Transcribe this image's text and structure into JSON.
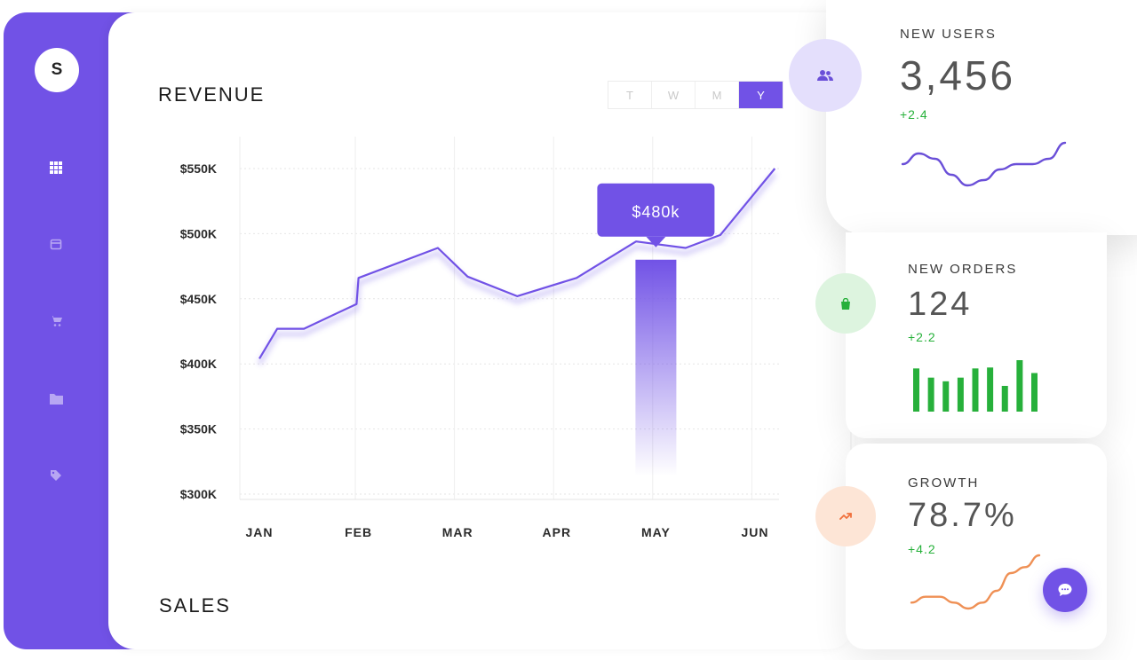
{
  "sidebar": {
    "avatar_initial": "S",
    "items": [
      {
        "icon": "grid-icon"
      },
      {
        "icon": "calendar-icon"
      },
      {
        "icon": "cart-icon"
      },
      {
        "icon": "folder-icon"
      },
      {
        "icon": "tag-icon"
      }
    ]
  },
  "revenue": {
    "title": "REVENUE",
    "ranges": [
      "T",
      "W",
      "M",
      "Y"
    ],
    "active_range": "Y",
    "tooltip": "$480k"
  },
  "sales": {
    "title": "SALES"
  },
  "chart_data": {
    "type": "line",
    "title": "REVENUE",
    "categories": [
      "JAN",
      "FEB",
      "MAR",
      "APR",
      "MAY",
      "JUN"
    ],
    "y_tick_labels": [
      "$550K",
      "$500K",
      "$450K",
      "$400K",
      "$350K",
      "$300K"
    ],
    "ylim": [
      300,
      550
    ],
    "y_unit": "$K",
    "series": [
      {
        "points": [
          {
            "x": 0.0,
            "y": 404
          },
          {
            "x": 0.18,
            "y": 427
          },
          {
            "x": 0.45,
            "y": 427
          },
          {
            "x": 0.98,
            "y": 446
          },
          {
            "x": 1.0,
            "y": 466
          },
          {
            "x": 1.8,
            "y": 489
          },
          {
            "x": 2.1,
            "y": 467
          },
          {
            "x": 2.6,
            "y": 452
          },
          {
            "x": 3.2,
            "y": 466
          },
          {
            "x": 3.8,
            "y": 494
          },
          {
            "x": 4.3,
            "y": 489
          },
          {
            "x": 4.65,
            "y": 499
          },
          {
            "x": 5.2,
            "y": 550
          }
        ]
      }
    ],
    "highlight": {
      "category": "MAY",
      "value": 480,
      "label": "$480k"
    },
    "grid": true,
    "color": "#7152e6"
  },
  "stats": [
    {
      "label": "NEW USERS",
      "value": "3,456",
      "delta": "+2.4",
      "icon": "users-icon",
      "icon_color": "#6a4fd8",
      "icon_bg": "#e4dffc",
      "sparkline": {
        "type": "line",
        "color": "#6a4fd8",
        "values": [
          5,
          7,
          6,
          3,
          1,
          2,
          4,
          5,
          5,
          6,
          9
        ]
      }
    },
    {
      "label": "NEW ORDERS",
      "value": "124",
      "delta": "+2.2",
      "icon": "bag-icon",
      "icon_color": "#27b03b",
      "icon_bg": "#ddf4df",
      "sparkline": {
        "type": "bar",
        "color": "#27b03b",
        "values": [
          47,
          37,
          33,
          37,
          47,
          48,
          28,
          56,
          42
        ]
      }
    },
    {
      "label": "GROWTH",
      "value": "78.7%",
      "delta": "+4.2",
      "icon": "trend-up-icon",
      "icon_color": "#f0703c",
      "icon_bg": "#fde5d6",
      "sparkline": {
        "type": "line",
        "color": "#ef9055",
        "values": [
          1,
          2,
          2,
          1,
          0,
          1,
          3,
          6,
          7,
          9
        ]
      }
    }
  ],
  "chat": {
    "icon": "chat-icon"
  }
}
